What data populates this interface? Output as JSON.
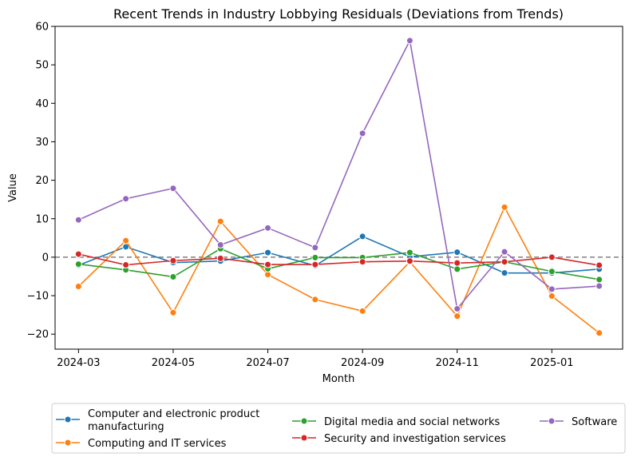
{
  "chart_data": {
    "type": "line",
    "title": "Recent Trends in Industry Lobbying Residuals (Deviations from Trends)",
    "xlabel": "Month",
    "ylabel": "Value",
    "ylim": [
      -23.9,
      60
    ],
    "yticks": [
      -20,
      -10,
      0,
      10,
      20,
      30,
      40,
      50,
      60
    ],
    "x": [
      "2024-03",
      "2024-04",
      "2024-05",
      "2024-06",
      "2024-07",
      "2024-08",
      "2024-09",
      "2024-10",
      "2024-11",
      "2024-12",
      "2025-01",
      "2025-02"
    ],
    "xtick_labels": [
      "2024-03",
      "2024-05",
      "2024-07",
      "2024-09",
      "2024-11",
      "2025-01"
    ],
    "reference_line": 0,
    "legend_position": "bottom",
    "grid": false,
    "series": [
      {
        "name": "Computer and electronic product manufacturing",
        "color": "#1f77b4",
        "values": [
          -2.1,
          2.7,
          -1.4,
          -1.0,
          1.2,
          -2.2,
          5.4,
          0.1,
          1.3,
          -4.1,
          -4.1,
          -3.1
        ]
      },
      {
        "name": "Computing and IT services",
        "color": "#ff7f0e",
        "values": [
          -7.6,
          4.3,
          -14.4,
          9.3,
          -4.5,
          -11.0,
          -14.0,
          -1.2,
          -15.3,
          13.0,
          -10.1,
          -19.7
        ]
      },
      {
        "name": "Digital media and social networks",
        "color": "#2ca02c",
        "values": [
          -1.8,
          -3.3,
          -5.1,
          2.2,
          -3.0,
          -0.1,
          -0.1,
          1.2,
          -3.1,
          -1.2,
          -3.7,
          -5.8
        ]
      },
      {
        "name": "Security and investigation services",
        "color": "#d62728",
        "values": [
          0.8,
          -2.0,
          -0.9,
          -0.3,
          -1.9,
          -1.9,
          -1.2,
          -1.0,
          -1.5,
          -1.2,
          0.0,
          -2.1
        ]
      },
      {
        "name": "Software",
        "color": "#9467bd",
        "values": [
          9.7,
          15.2,
          17.9,
          3.2,
          7.6,
          2.5,
          32.2,
          56.3,
          -13.4,
          1.4,
          -8.3,
          -7.5
        ]
      }
    ],
    "legend_lines": [
      [
        "Computer and electronic product",
        "manufacturing"
      ],
      [
        "Computing and IT services"
      ],
      [
        "Digital media and social networks"
      ],
      [
        "Security and investigation services"
      ],
      [
        "Software"
      ]
    ]
  }
}
